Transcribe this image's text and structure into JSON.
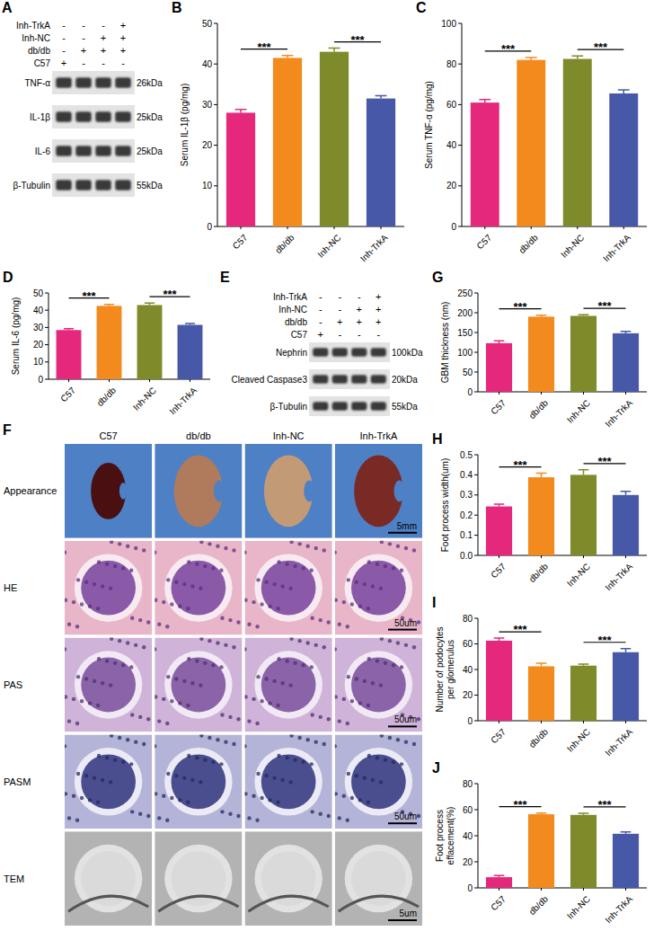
{
  "blots": [
    {
      "panel": "A",
      "conditions": [
        {
          "name": "Inh-TrkA",
          "signs": [
            "-",
            "-",
            "-",
            "+"
          ]
        },
        {
          "name": "Inh-NC",
          "signs": [
            "-",
            "-",
            "+",
            "+"
          ]
        },
        {
          "name": "db/db",
          "signs": [
            "-",
            "+",
            "+",
            "+"
          ]
        },
        {
          "name": "C57",
          "signs": [
            "+",
            "-",
            "-",
            "-"
          ]
        }
      ],
      "bands": [
        {
          "name": "TNF-α",
          "size": "26kDa"
        },
        {
          "name": "IL-1β",
          "size": "25kDa"
        },
        {
          "name": "IL-6",
          "size": "25kDa"
        },
        {
          "name": "β-Tubulin",
          "size": "55kDa"
        }
      ]
    },
    {
      "panel": "E",
      "conditions": [
        {
          "name": "Inh-TrkA",
          "signs": [
            "-",
            "-",
            "-",
            "+"
          ]
        },
        {
          "name": "Inh-NC",
          "signs": [
            "-",
            "-",
            "+",
            "+"
          ]
        },
        {
          "name": "db/db",
          "signs": [
            "-",
            "+",
            "+",
            "+"
          ]
        },
        {
          "name": "C57",
          "signs": [
            "+",
            "-",
            "-",
            "-"
          ]
        }
      ],
      "bands": [
        {
          "name": "Nephrin",
          "size": "100kDa"
        },
        {
          "name": "Cleaved Caspase3",
          "size": "20kDa"
        },
        {
          "name": "β-Tubulin",
          "size": "55kDa"
        }
      ]
    }
  ],
  "image_panel": {
    "panel": "F",
    "columns": [
      "C57",
      "db/db",
      "Inh-NC",
      "Inh-TrkA"
    ],
    "rows": [
      {
        "name": "Appearance",
        "scale_bar": "5mm"
      },
      {
        "name": "HE",
        "scale_bar": "50um"
      },
      {
        "name": "PAS",
        "scale_bar": "50um"
      },
      {
        "name": "PASM",
        "scale_bar": "50um"
      },
      {
        "name": "TEM",
        "scale_bar": "5um"
      }
    ]
  },
  "chart_data": [
    {
      "panel": "B",
      "type": "bar",
      "y_label": "Serum IL-1β (pg/mg)",
      "categories": [
        "C57",
        "db/db",
        "Inh-NC",
        "Inh-TrkA"
      ],
      "values": [
        28,
        41.5,
        43,
        31.5
      ],
      "errors": [
        0.8,
        0.6,
        0.9,
        0.7
      ],
      "colors": [
        "#e5287b",
        "#f28a1e",
        "#7f8a2a",
        "#4858a8"
      ],
      "ylim": [
        0,
        50
      ],
      "yticks": [
        0,
        10,
        20,
        30,
        40,
        50
      ],
      "significance": [
        {
          "from": "C57",
          "to": "db/db",
          "label": "***"
        },
        {
          "from": "Inh-NC",
          "to": "Inh-TrkA",
          "label": "***"
        }
      ]
    },
    {
      "panel": "C",
      "type": "bar",
      "y_label": "Serum TNF-α (pg/mg)",
      "categories": [
        "C57",
        "db/db",
        "Inh-NC",
        "Inh-TrkA"
      ],
      "values": [
        61,
        82,
        82.5,
        65.5
      ],
      "errors": [
        1.5,
        1.2,
        1.5,
        1.8
      ],
      "colors": [
        "#e5287b",
        "#f28a1e",
        "#7f8a2a",
        "#4858a8"
      ],
      "ylim": [
        0,
        100
      ],
      "yticks": [
        0,
        20,
        40,
        60,
        80,
        100
      ],
      "significance": [
        {
          "from": "C57",
          "to": "db/db",
          "label": "***"
        },
        {
          "from": "Inh-NC",
          "to": "Inh-TrkA",
          "label": "***"
        }
      ]
    },
    {
      "panel": "D",
      "type": "bar",
      "y_label": "Serum IL-6 (pg/mg)",
      "categories": [
        "C57",
        "db/db",
        "Inh-NC",
        "Inh-TrkA"
      ],
      "values": [
        28.5,
        42.5,
        43,
        31.5
      ],
      "errors": [
        0.8,
        0.9,
        1.2,
        0.8
      ],
      "colors": [
        "#e5287b",
        "#f28a1e",
        "#7f8a2a",
        "#4858a8"
      ],
      "ylim": [
        0,
        50
      ],
      "yticks": [
        0,
        10,
        20,
        30,
        40,
        50
      ],
      "significance": [
        {
          "from": "C57",
          "to": "db/db",
          "label": "***"
        },
        {
          "from": "Inh-NC",
          "to": "Inh-TrkA",
          "label": "***"
        }
      ]
    },
    {
      "panel": "G",
      "type": "bar",
      "y_label": "GBM thickness (nm)",
      "categories": [
        "C57",
        "db/db",
        "Inh-NC",
        "Inh-TrkA"
      ],
      "values": [
        123,
        190,
        192,
        148
      ],
      "errors": [
        6,
        4,
        3,
        5
      ],
      "colors": [
        "#e5287b",
        "#f28a1e",
        "#7f8a2a",
        "#4858a8"
      ],
      "ylim": [
        0,
        250
      ],
      "yticks": [
        0,
        50,
        100,
        150,
        200,
        250
      ],
      "significance": [
        {
          "from": "C57",
          "to": "db/db",
          "label": "***"
        },
        {
          "from": "Inh-NC",
          "to": "Inh-TrkA",
          "label": "***"
        }
      ]
    },
    {
      "panel": "H",
      "type": "bar",
      "y_label": "Foot process width(um)",
      "categories": [
        "C57",
        "db/db",
        "Inh-NC",
        "Inh-TrkA"
      ],
      "values": [
        0.243,
        0.388,
        0.4,
        0.3
      ],
      "errors": [
        0.012,
        0.02,
        0.025,
        0.018
      ],
      "colors": [
        "#e5287b",
        "#f28a1e",
        "#7f8a2a",
        "#4858a8"
      ],
      "ylim": [
        0,
        0.5
      ],
      "yticks": [
        {
          "value": 0,
          "label": "0.0"
        },
        {
          "value": 0.1,
          "label": "0.1"
        },
        {
          "value": 0.2,
          "label": "0.2"
        },
        {
          "value": 0.3,
          "label": "0.3"
        },
        {
          "value": 0.4,
          "label": "0.4"
        },
        {
          "value": 0.5,
          "label": "0.5"
        }
      ],
      "significance": [
        {
          "from": "C57",
          "to": "db/db",
          "label": "***"
        },
        {
          "from": "Inh-NC",
          "to": "Inh-TrkA",
          "label": "***"
        }
      ]
    },
    {
      "panel": "I",
      "type": "bar",
      "y_label": "Number of podocytes per glomerulus",
      "categories": [
        "C57",
        "db/db",
        "Inh-NC",
        "Inh-TrkA"
      ],
      "values": [
        62.5,
        42.5,
        43,
        53.5
      ],
      "errors": [
        2,
        2.5,
        1.2,
        2.8
      ],
      "colors": [
        "#e5287b",
        "#f28a1e",
        "#7f8a2a",
        "#4858a8"
      ],
      "ylim": [
        0,
        80
      ],
      "yticks": [
        0,
        20,
        40,
        60,
        80
      ],
      "significance": [
        {
          "from": "C57",
          "to": "db/db",
          "label": "***"
        },
        {
          "from": "Inh-NC",
          "to": "Inh-TrkA",
          "label": "***"
        }
      ]
    },
    {
      "panel": "J",
      "type": "bar",
      "y_label": "Foot process effacement(%)",
      "categories": [
        "C57",
        "db/db",
        "Inh-NC",
        "Inh-TrkA"
      ],
      "values": [
        8.2,
        56.5,
        56,
        41.5
      ],
      "errors": [
        1.2,
        1,
        1.3,
        1.5
      ],
      "colors": [
        "#e5287b",
        "#f28a1e",
        "#7f8a2a",
        "#4858a8"
      ],
      "ylim": [
        0,
        80
      ],
      "yticks": [
        0,
        20,
        40,
        60,
        80
      ],
      "significance": [
        {
          "from": "C57",
          "to": "db/db",
          "label": "***"
        },
        {
          "from": "Inh-NC",
          "to": "Inh-TrkA",
          "label": "***"
        }
      ]
    }
  ]
}
